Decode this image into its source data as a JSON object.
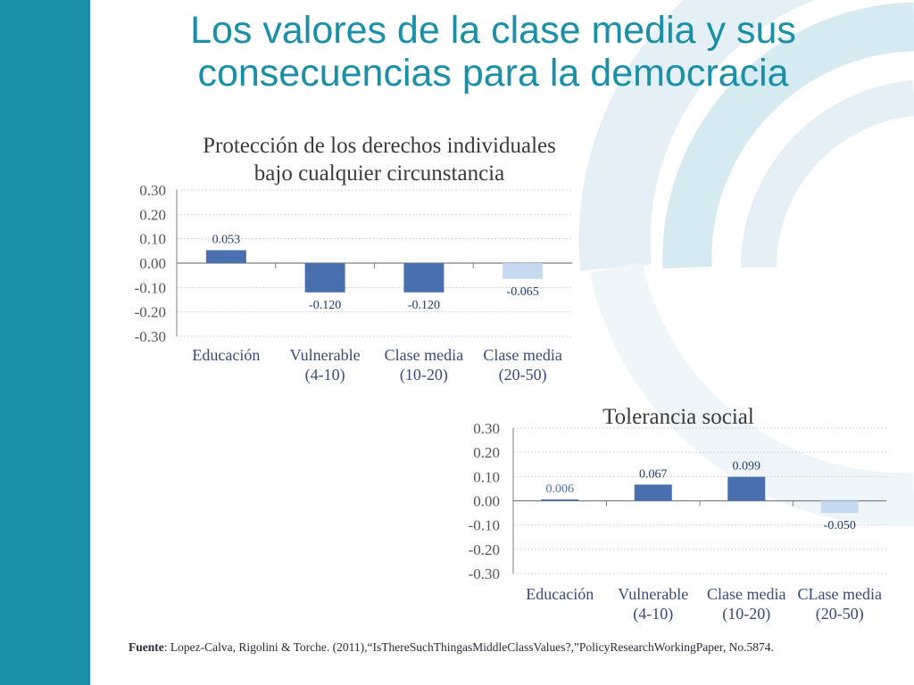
{
  "slide": {
    "title_line1": "Los valores de la clase media y sus",
    "title_line2": "consecuencias para la democracia"
  },
  "colors": {
    "sidebar": "#1a8fa8",
    "title": "#1a8fa8",
    "arc": "#d6eaf2",
    "bar_dark": "#4a6fae",
    "bar_light": "#c6d9f0"
  },
  "chart_data": [
    {
      "type": "bar",
      "title_line1": "Protección de los derechos individuales",
      "title_line2": "bajo cualquier circunstancia",
      "categories": [
        [
          "Educación"
        ],
        [
          "Vulnerable",
          "(4-10)"
        ],
        [
          "Clase media",
          "(10-20)"
        ],
        [
          "Clase media",
          "(20-50)"
        ]
      ],
      "values": [
        0.053,
        -0.12,
        -0.12,
        -0.065
      ],
      "data_labels": [
        "0.053",
        "-0.120",
        "-0.120",
        "-0.065"
      ],
      "bar_colors": [
        "dark",
        "dark",
        "dark",
        "light"
      ],
      "y_ticks": [
        "0.30",
        "0.20",
        "0.10",
        "0.00",
        "-0.10",
        "-0.20",
        "-0.30"
      ],
      "ylim": [
        -0.3,
        0.3
      ],
      "xlabel": "",
      "ylabel": "",
      "grid": true,
      "legend": "none"
    },
    {
      "type": "bar",
      "title_line1": "Tolerancia social",
      "title_line2": "",
      "categories": [
        [
          "Educación"
        ],
        [
          "Vulnerable",
          "(4-10)"
        ],
        [
          "Clase media",
          "(10-20)"
        ],
        [
          "CLase media",
          "(20-50)"
        ]
      ],
      "values": [
        0.006,
        0.067,
        0.099,
        -0.05
      ],
      "data_labels": [
        "0.006",
        "0.067",
        "0.099",
        "-0.050"
      ],
      "bar_colors": [
        "dark",
        "dark",
        "dark",
        "light"
      ],
      "y_ticks": [
        "0.30",
        "0.20",
        "0.10",
        "0.00",
        "-0.10",
        "-0.20",
        "-0.30"
      ],
      "ylim": [
        -0.3,
        0.3
      ],
      "xlabel": "",
      "ylabel": "",
      "grid": true,
      "legend": "none"
    }
  ],
  "source": {
    "label": "Fuente",
    "text": ": Lopez-Calva, Rigolini & Torche. (2011),“IsThereSuchThingasMiddleClassValues?,”PolicyResearchWorkingPaper, No.5874."
  }
}
